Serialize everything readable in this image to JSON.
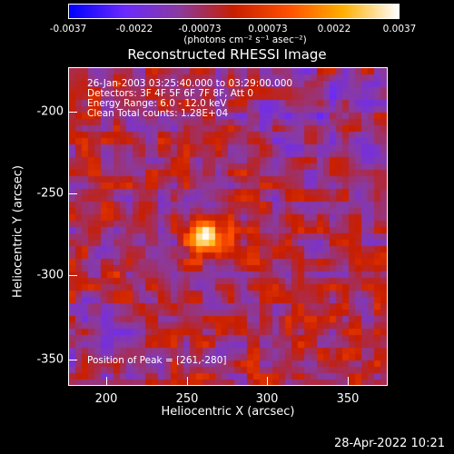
{
  "colorbar": {
    "tick_labels": [
      "-0.0037",
      "-0.0022",
      "-0.00073",
      "0.00073",
      "0.0022",
      "0.0037"
    ],
    "units_label": "(photons cm⁻² s⁻¹ asec⁻²)"
  },
  "title": "Reconstructed RHESSI Image",
  "annotations": {
    "time_range": "26-Jan-2003 03:25:40.000 to 03:29:00.000",
    "detectors": "Detectors: 3F 4F 5F 6F 7F 8F, Att 0",
    "energy": "Energy Range: 6.0 - 12.0 keV",
    "clean_counts": "Clean     Total counts: 1.28E+04",
    "peak": "Position of Peak = [261,-280]"
  },
  "axes": {
    "xlabel": "Heliocentric X (arcsec)",
    "ylabel": "Heliocentric Y (arcsec)",
    "x_ticks": [
      "200",
      "250",
      "300",
      "350"
    ],
    "y_ticks": [
      "-200",
      "-250",
      "-300",
      "-350"
    ],
    "x_range": [
      178,
      373
    ],
    "y_range": [
      -372,
      -177
    ]
  },
  "footer": {
    "date_stamp": "28-Apr-2022 10:21"
  },
  "chart_data": {
    "type": "heatmap",
    "title": "Reconstructed RHESSI Image",
    "xlabel": "Heliocentric X (arcsec)",
    "ylabel": "Heliocentric Y (arcsec)",
    "xlim": [
      178,
      373
    ],
    "ylim": [
      -372,
      -177
    ],
    "peak": [
      261,
      -280
    ],
    "color_range": [
      -0.0037,
      0.0037
    ],
    "colormap": [
      "#0000ff",
      "#6a2aff",
      "#8a3aa0",
      "#c81e00",
      "#ff5000",
      "#ffb000",
      "#ffffff"
    ]
  }
}
